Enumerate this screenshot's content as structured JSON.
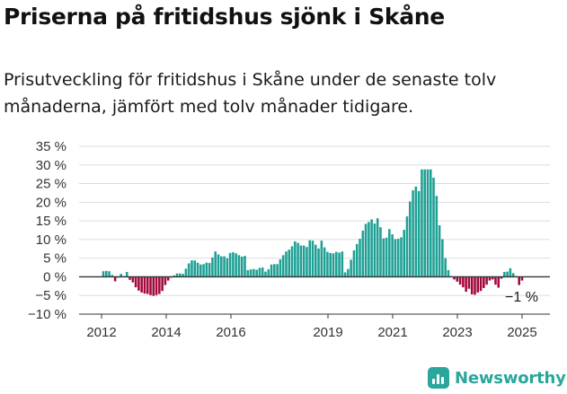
{
  "header": {
    "title": "Priserna på fritidshus sjönk i Skåne",
    "subtitle": "Prisutveckling för fritidshus i Skåne under de senaste tolv månaderna, jämfört med tolv månader tidigare."
  },
  "brand": {
    "name": "Newsworthy",
    "icon": "newsworthy-logo-icon"
  },
  "chart_data": {
    "type": "bar",
    "ylim": [
      -10,
      35
    ],
    "yticks": [
      -10,
      -5,
      0,
      5,
      10,
      15,
      20,
      25,
      30,
      35
    ],
    "ytick_labels": [
      "−10 %",
      "−5 %",
      "0 %",
      "5 %",
      "10 %",
      "15 %",
      "20 %",
      "25 %",
      "30 %",
      "35 %"
    ],
    "xtick_labels": [
      "2012",
      "2014",
      "2016",
      "2019",
      "2021",
      "2023",
      "2025"
    ],
    "grid": true,
    "legend": "none",
    "colors": {
      "positive": "#1fa095",
      "negative": "#a3093f",
      "grid": "#dddddd",
      "axis": "#333333"
    },
    "annotation": "−1 %",
    "series": [
      {
        "values": [
          1.5,
          1.6,
          1.5,
          0.5,
          -1.2,
          -0.2,
          0.8,
          0.2,
          1.3,
          -0.8,
          -1.5,
          -2.8,
          -3.7,
          -4.2,
          -4.5,
          -4.6,
          -4.9,
          -5.1,
          -4.9,
          -4.6,
          -3.8,
          -2.2,
          -1.0,
          -0.2,
          0.4,
          0.9,
          0.9,
          0.8,
          2.2,
          3.6,
          4.4,
          4.4,
          3.8,
          3.3,
          3.4,
          3.8,
          3.7,
          5.2,
          6.8,
          6.0,
          5.5,
          5.5,
          5.0,
          6.4,
          6.6,
          6.3,
          5.8,
          5.4,
          5.6,
          1.8,
          2.0,
          2.1,
          1.9,
          2.4,
          2.5,
          1.4,
          2.0,
          3.3,
          3.4,
          3.4,
          4.7,
          5.8,
          6.8,
          7.3,
          8.2,
          9.5,
          9.1,
          8.4,
          8.4,
          8.0,
          9.8,
          9.7,
          8.6,
          7.6,
          9.7,
          7.9,
          6.7,
          6.4,
          6.3,
          6.7,
          6.5,
          6.8,
          1.2,
          2.1,
          4.6,
          7.1,
          8.8,
          10.2,
          12.4,
          14.2,
          14.7,
          15.4,
          14.3,
          15.7,
          13.3,
          10.3,
          10.5,
          12.8,
          11.4,
          10.1,
          10.2,
          10.6,
          12.6,
          16.2,
          20.2,
          23.2,
          24.2,
          23.0,
          28.8,
          28.8,
          28.8,
          28.8,
          26.6,
          21.7,
          13.8,
          10.1,
          5.0,
          1.8,
          0.2,
          -0.7,
          -1.3,
          -2.1,
          -2.8,
          -4.0,
          -3.2,
          -4.7,
          -4.8,
          -4.2,
          -3.8,
          -3.0,
          -2.1,
          -1.0,
          -0.7,
          -2.1,
          -2.9,
          -0.5,
          1.3,
          1.4,
          2.3,
          1.0,
          0.2,
          -2.2,
          -1.0
        ]
      }
    ]
  }
}
